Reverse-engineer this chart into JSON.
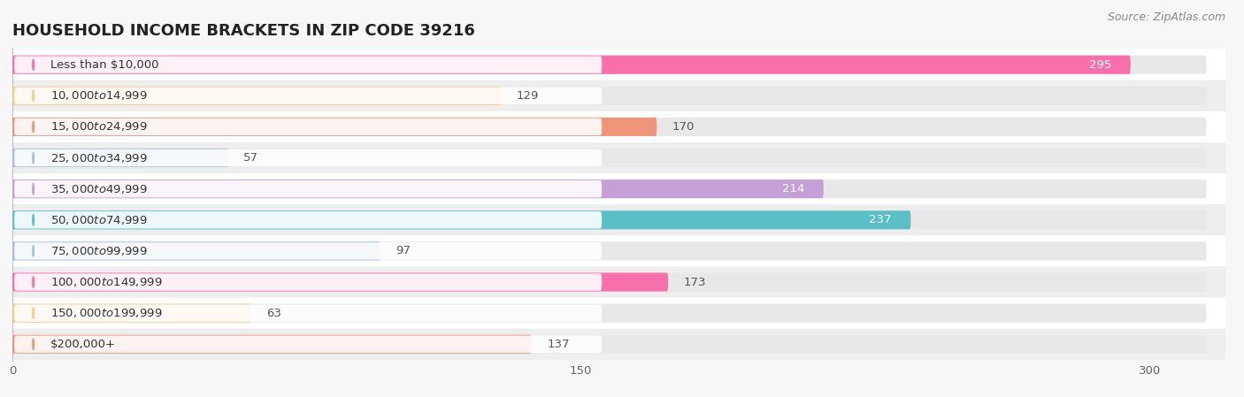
{
  "title": "HOUSEHOLD INCOME BRACKETS IN ZIP CODE 39216",
  "source": "Source: ZipAtlas.com",
  "categories": [
    "Less than $10,000",
    "$10,000 to $14,999",
    "$15,000 to $24,999",
    "$25,000 to $34,999",
    "$35,000 to $49,999",
    "$50,000 to $74,999",
    "$75,000 to $99,999",
    "$100,000 to $149,999",
    "$150,000 to $199,999",
    "$200,000+"
  ],
  "values": [
    295,
    129,
    170,
    57,
    214,
    237,
    97,
    173,
    63,
    137
  ],
  "bar_colors": [
    "#F96FAB",
    "#FCC98A",
    "#F0957A",
    "#AABDE8",
    "#C5A0D8",
    "#5BBFC8",
    "#AABDE8",
    "#F96FAB",
    "#FCC98A",
    "#F0957A"
  ],
  "bg_color": "#f7f7f7",
  "row_bg_light": "#ffffff",
  "row_bg_dark": "#eeeeee",
  "xlim_max": 315,
  "xticks": [
    0,
    150,
    300
  ],
  "title_fontsize": 13,
  "label_fontsize": 9.5,
  "value_fontsize": 9.5,
  "source_fontsize": 9
}
